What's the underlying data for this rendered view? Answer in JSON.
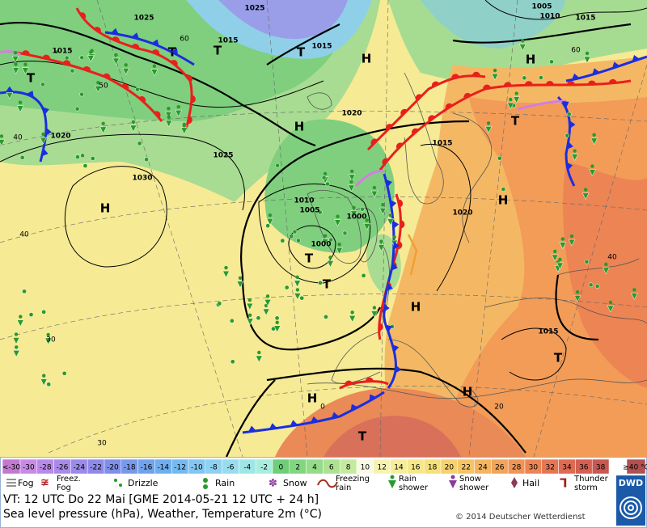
{
  "map": {
    "isobar_labels": [
      "1025",
      "1025",
      "1005",
      "1010",
      "1015",
      "1015",
      "1015",
      "1015",
      "1020",
      "1020",
      "1025",
      "1030",
      "1015",
      "1010",
      "1005",
      "1000",
      "1000",
      "1020",
      "1015"
    ],
    "graticule_labels": [
      "60",
      "60",
      "50",
      "40",
      "40",
      "30",
      "30",
      "20",
      "0",
      "40"
    ],
    "pressure_centers": [
      "H",
      "H",
      "H",
      "H",
      "H",
      "H",
      "H",
      "H",
      "T",
      "T",
      "T",
      "T",
      "T",
      "T",
      "T",
      "T",
      "T"
    ]
  },
  "legend": {
    "temperature_scale": [
      {
        "label": "<-30",
        "color": "#c27ad0"
      },
      {
        "label": "-30",
        "color": "#c98ae6"
      },
      {
        "label": "-28",
        "color": "#b88ae8"
      },
      {
        "label": "-26",
        "color": "#a98ae8"
      },
      {
        "label": "-24",
        "color": "#9b8ae8"
      },
      {
        "label": "-22",
        "color": "#8f8ae8"
      },
      {
        "label": "-20",
        "color": "#7f8ee8"
      },
      {
        "label": "-18",
        "color": "#7898ea"
      },
      {
        "label": "-16",
        "color": "#72a2ec"
      },
      {
        "label": "-14",
        "color": "#6eaeee"
      },
      {
        "label": "-12",
        "color": "#74baf0"
      },
      {
        "label": "-10",
        "color": "#82c6f2"
      },
      {
        "label": "-8",
        "color": "#8ed2f2"
      },
      {
        "label": "-6",
        "color": "#98dcee"
      },
      {
        "label": "-4",
        "color": "#a0e6e6"
      },
      {
        "label": "-2",
        "color": "#a8eede"
      },
      {
        "label": "0",
        "color": "#6ecf78"
      },
      {
        "label": "2",
        "color": "#82d680"
      },
      {
        "label": "4",
        "color": "#96dc88"
      },
      {
        "label": "6",
        "color": "#ace292"
      },
      {
        "label": "8",
        "color": "#c4ea9e"
      },
      {
        "label": "10",
        "color": "#f8f8e6"
      },
      {
        "label": "12",
        "color": "#f6f2b0"
      },
      {
        "label": "14",
        "color": "#f6ee9c"
      },
      {
        "label": "16",
        "color": "#f6e88a"
      },
      {
        "label": "18",
        "color": "#f6e07a"
      },
      {
        "label": "20",
        "color": "#f6d26e"
      },
      {
        "label": "22",
        "color": "#f6c466"
      },
      {
        "label": "24",
        "color": "#f4b460"
      },
      {
        "label": "26",
        "color": "#f2a45a"
      },
      {
        "label": "28",
        "color": "#f09456"
      },
      {
        "label": "30",
        "color": "#ec8454"
      },
      {
        "label": "32",
        "color": "#e67652"
      },
      {
        "label": "34",
        "color": "#de6a52"
      },
      {
        "label": "36",
        "color": "#d46052"
      },
      {
        "label": "38",
        "color": "#c85852"
      },
      {
        "label": "≥40 °C",
        "color": "#b05050"
      }
    ],
    "weather_items": [
      {
        "lines": [
          "Fog"
        ]
      },
      {
        "lines": [
          "Freez.",
          "Fog"
        ]
      },
      {
        "lines": [
          "Drizzle"
        ]
      },
      {
        "lines": [
          "Rain"
        ]
      },
      {
        "lines": [
          "Snow"
        ]
      },
      {
        "lines": [
          "Freezing",
          "rain"
        ]
      },
      {
        "lines": [
          "Rain",
          "shower"
        ]
      },
      {
        "lines": [
          "Snow",
          "shower"
        ]
      },
      {
        "lines": [
          "Hail"
        ]
      },
      {
        "lines": [
          "Thunder",
          "storm"
        ]
      }
    ]
  },
  "footer": {
    "valid_time": "VT: 12 UTC Do  22 Mai [GME 2014-05-21  12 UTC + 24 h]",
    "description": "Sea level pressure (hPa), Weather, Temperature 2m (°C)",
    "copyright": "© 2014 Deutscher Wetterdienst",
    "logo": "DWD"
  }
}
